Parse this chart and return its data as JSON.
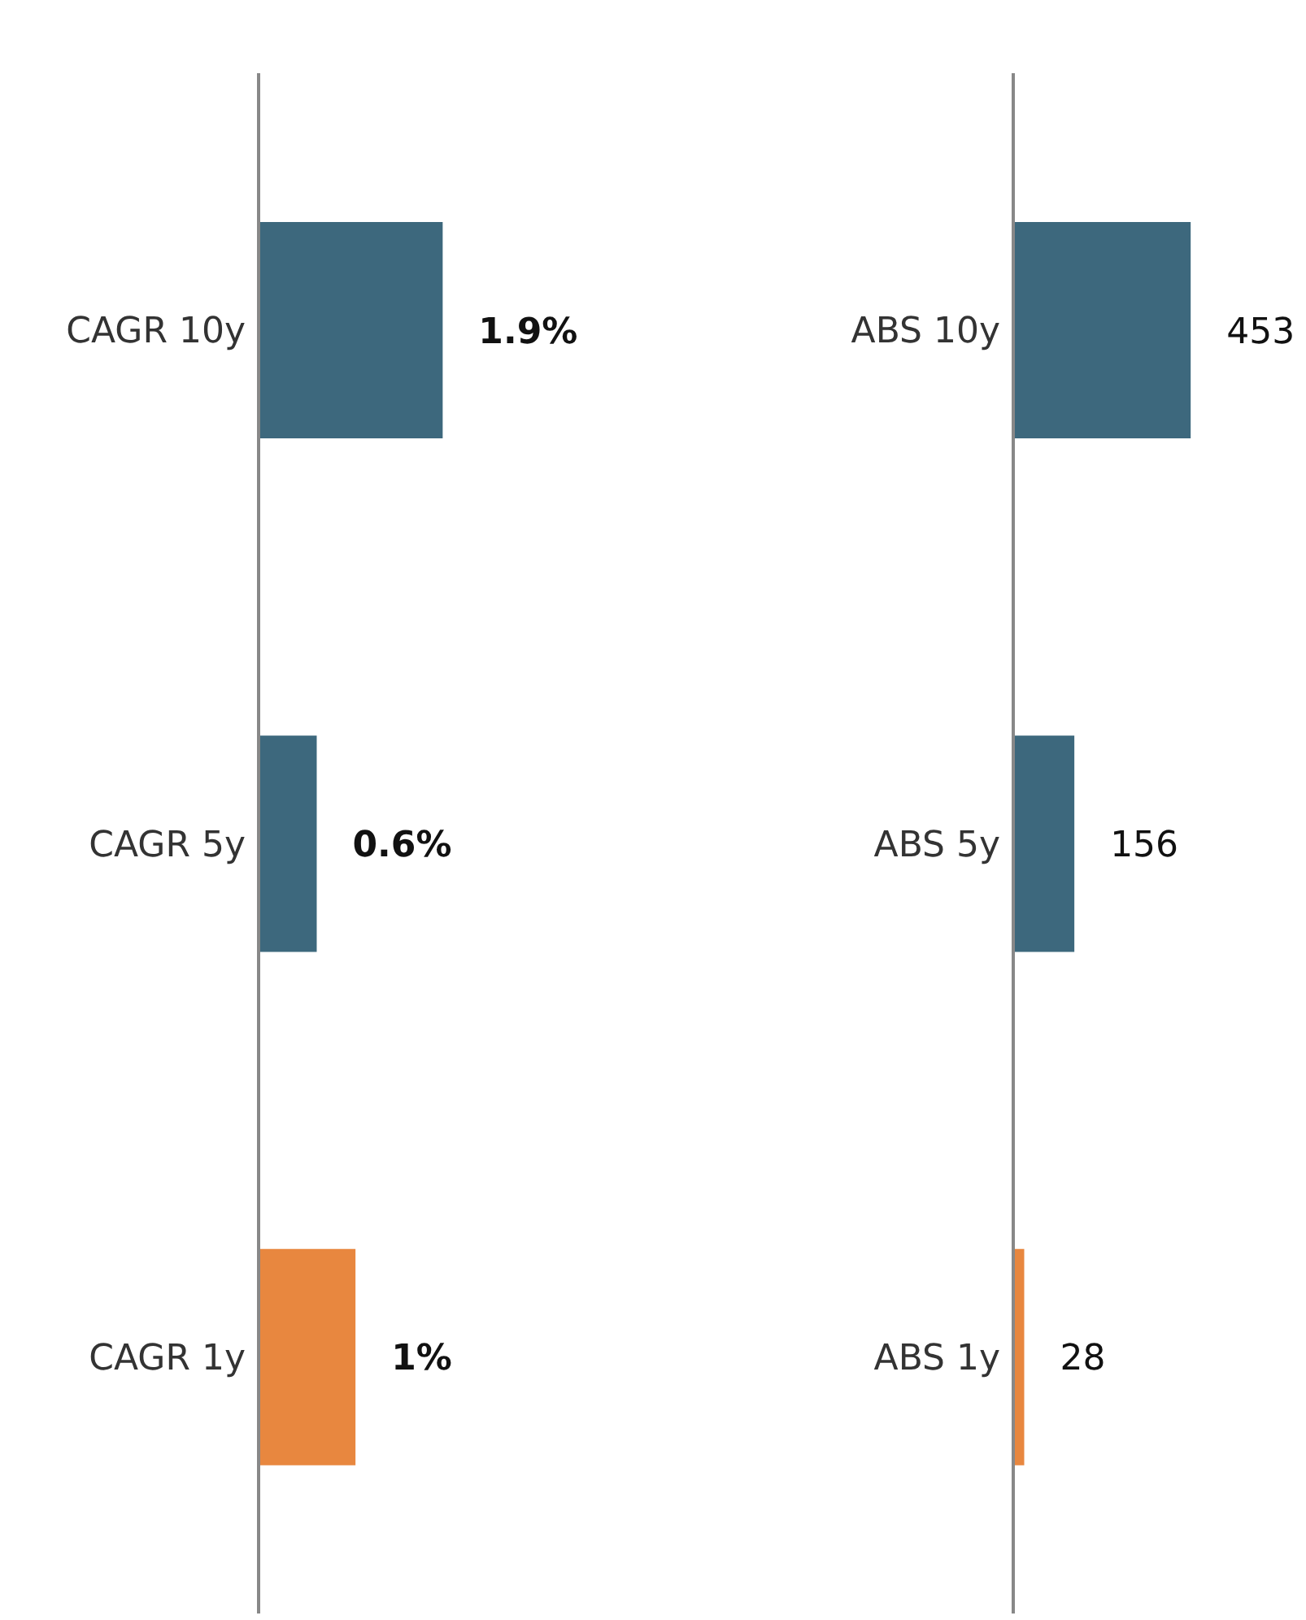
{
  "chart_data": [
    {
      "type": "bar",
      "orientation": "horizontal",
      "categories": [
        "CAGR 10y",
        "CAGR 5y",
        "CAGR 1y"
      ],
      "values": [
        1.9,
        0.6,
        1
      ],
      "colors": [
        "#3d687d",
        "#3d687d",
        "#e8873f"
      ],
      "value_labels": [
        "1.9%",
        "0.6%",
        "1%"
      ]
    },
    {
      "type": "bar",
      "orientation": "horizontal",
      "categories": [
        "ABS 10y",
        "ABS 5y",
        "ABS 1y"
      ],
      "values": [
        453,
        156,
        28
      ],
      "colors": [
        "#3d687d",
        "#3d687d",
        "#e8873f"
      ],
      "value_labels": [
        "453",
        "156",
        "28"
      ]
    }
  ]
}
